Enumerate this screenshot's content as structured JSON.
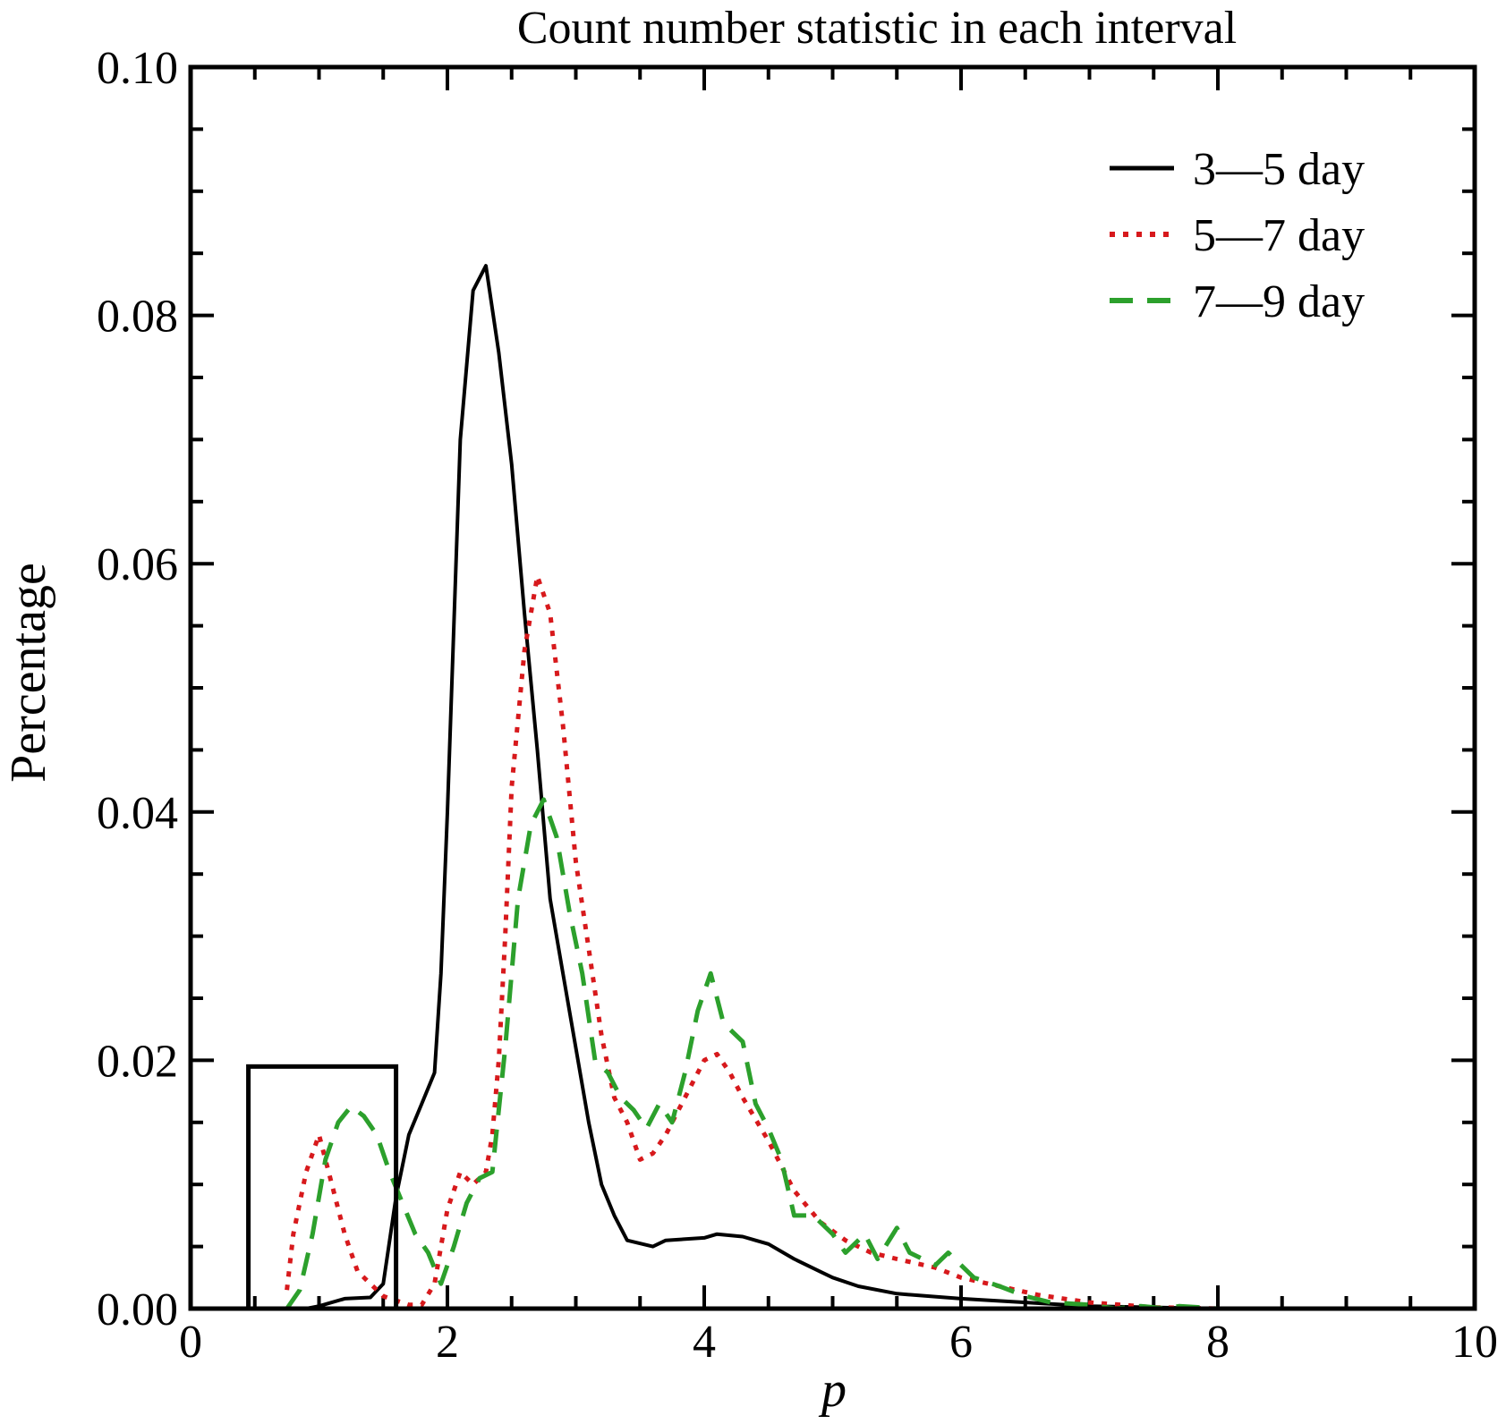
{
  "chart_data": {
    "type": "line",
    "title": "Count number statistic in each interval",
    "xlabel": "p",
    "ylabel": "Percentage",
    "xlim": [
      0,
      10
    ],
    "ylim": [
      0,
      0.1
    ],
    "grid": false,
    "legend_position": "top-right",
    "x_ticks": [
      0,
      2,
      4,
      6,
      8,
      10
    ],
    "x_tick_labels": [
      "0",
      "2",
      "4",
      "6",
      "8",
      "10"
    ],
    "y_ticks": [
      0,
      0.02,
      0.04,
      0.06,
      0.08,
      0.1
    ],
    "y_tick_labels": [
      "0.00",
      "0.02",
      "0.04",
      "0.06",
      "0.08",
      "0.10"
    ],
    "highlight_box": {
      "x_range": [
        0.45,
        1.6
      ],
      "y_range": [
        0,
        0.0195
      ]
    },
    "series": [
      {
        "name": "3—5 day",
        "color": "#000000",
        "style": "solid",
        "points": [
          [
            0.5,
            0
          ],
          [
            0.9,
            0
          ],
          [
            1.0,
            0.0002
          ],
          [
            1.2,
            0.0008
          ],
          [
            1.4,
            0.0009
          ],
          [
            1.5,
            0.002
          ],
          [
            1.6,
            0.009
          ],
          [
            1.7,
            0.014
          ],
          [
            1.8,
            0.0165
          ],
          [
            1.9,
            0.019
          ],
          [
            1.95,
            0.027
          ],
          [
            2.0,
            0.04
          ],
          [
            2.05,
            0.055
          ],
          [
            2.1,
            0.07
          ],
          [
            2.2,
            0.082
          ],
          [
            2.3,
            0.084
          ],
          [
            2.4,
            0.077
          ],
          [
            2.5,
            0.068
          ],
          [
            2.6,
            0.056
          ],
          [
            2.7,
            0.045
          ],
          [
            2.8,
            0.033
          ],
          [
            2.9,
            0.027
          ],
          [
            3.0,
            0.021
          ],
          [
            3.1,
            0.015
          ],
          [
            3.2,
            0.01
          ],
          [
            3.3,
            0.0075
          ],
          [
            3.4,
            0.0055
          ],
          [
            3.6,
            0.005
          ],
          [
            3.7,
            0.0055
          ],
          [
            4.0,
            0.0057
          ],
          [
            4.1,
            0.006
          ],
          [
            4.3,
            0.0058
          ],
          [
            4.4,
            0.0055
          ],
          [
            4.5,
            0.0052
          ],
          [
            4.7,
            0.004
          ],
          [
            4.9,
            0.003
          ],
          [
            5.0,
            0.0025
          ],
          [
            5.2,
            0.0018
          ],
          [
            5.5,
            0.0012
          ],
          [
            6.0,
            0.0008
          ],
          [
            6.5,
            0.0005
          ],
          [
            7.0,
            0.0002
          ],
          [
            7.5,
            0.0001
          ],
          [
            8.0,
            0
          ]
        ]
      },
      {
        "name": "5—7 day",
        "color": "#d7191c",
        "style": "dotted",
        "points": [
          [
            0.75,
            0.0015
          ],
          [
            0.8,
            0.006
          ],
          [
            0.9,
            0.011
          ],
          [
            1.0,
            0.014
          ],
          [
            1.1,
            0.01
          ],
          [
            1.2,
            0.006
          ],
          [
            1.3,
            0.003
          ],
          [
            1.5,
            0.001
          ],
          [
            1.7,
            0.0003
          ],
          [
            1.8,
            0.0003
          ],
          [
            1.9,
            0.002
          ],
          [
            2.0,
            0.008
          ],
          [
            2.1,
            0.011
          ],
          [
            2.2,
            0.01
          ],
          [
            2.3,
            0.011
          ],
          [
            2.35,
            0.014
          ],
          [
            2.4,
            0.02
          ],
          [
            2.45,
            0.03
          ],
          [
            2.5,
            0.042
          ],
          [
            2.6,
            0.053
          ],
          [
            2.7,
            0.059
          ],
          [
            2.8,
            0.056
          ],
          [
            2.9,
            0.047
          ],
          [
            3.0,
            0.036
          ],
          [
            3.1,
            0.029
          ],
          [
            3.2,
            0.022
          ],
          [
            3.3,
            0.017
          ],
          [
            3.4,
            0.015
          ],
          [
            3.5,
            0.012
          ],
          [
            3.6,
            0.0125
          ],
          [
            3.7,
            0.014
          ],
          [
            3.8,
            0.016
          ],
          [
            3.9,
            0.018
          ],
          [
            4.0,
            0.02
          ],
          [
            4.1,
            0.0205
          ],
          [
            4.2,
            0.019
          ],
          [
            4.3,
            0.017
          ],
          [
            4.5,
            0.0135
          ],
          [
            4.7,
            0.0095
          ],
          [
            4.9,
            0.007
          ],
          [
            5.1,
            0.0055
          ],
          [
            5.3,
            0.0045
          ],
          [
            5.5,
            0.004
          ],
          [
            5.8,
            0.0033
          ],
          [
            6.0,
            0.0025
          ],
          [
            6.3,
            0.0018
          ],
          [
            6.6,
            0.0011
          ],
          [
            7.0,
            0.0005
          ],
          [
            7.5,
            0.0001
          ],
          [
            8.0,
            0
          ],
          [
            8.4,
            0
          ]
        ]
      },
      {
        "name": "7—9 day",
        "color": "#2ca02c",
        "style": "dashed",
        "points": [
          [
            0.75,
            0
          ],
          [
            0.85,
            0.0015
          ],
          [
            0.95,
            0.006
          ],
          [
            1.05,
            0.012
          ],
          [
            1.15,
            0.015
          ],
          [
            1.25,
            0.0163
          ],
          [
            1.35,
            0.0155
          ],
          [
            1.45,
            0.014
          ],
          [
            1.55,
            0.011
          ],
          [
            1.65,
            0.0085
          ],
          [
            1.75,
            0.006
          ],
          [
            1.85,
            0.0045
          ],
          [
            1.95,
            0.002
          ],
          [
            2.05,
            0.005
          ],
          [
            2.15,
            0.0085
          ],
          [
            2.25,
            0.0105
          ],
          [
            2.35,
            0.011
          ],
          [
            2.45,
            0.021
          ],
          [
            2.55,
            0.033
          ],
          [
            2.65,
            0.039
          ],
          [
            2.75,
            0.041
          ],
          [
            2.85,
            0.038
          ],
          [
            2.95,
            0.032
          ],
          [
            3.05,
            0.027
          ],
          [
            3.15,
            0.02
          ],
          [
            3.25,
            0.019
          ],
          [
            3.35,
            0.017
          ],
          [
            3.45,
            0.016
          ],
          [
            3.55,
            0.0145
          ],
          [
            3.65,
            0.0165
          ],
          [
            3.75,
            0.015
          ],
          [
            3.85,
            0.019
          ],
          [
            3.95,
            0.024
          ],
          [
            4.05,
            0.027
          ],
          [
            4.15,
            0.023
          ],
          [
            4.3,
            0.0215
          ],
          [
            4.4,
            0.0165
          ],
          [
            4.5,
            0.0145
          ],
          [
            4.6,
            0.012
          ],
          [
            4.7,
            0.0075
          ],
          [
            4.85,
            0.0075
          ],
          [
            5.0,
            0.006
          ],
          [
            5.1,
            0.0045
          ],
          [
            5.25,
            0.006
          ],
          [
            5.35,
            0.004
          ],
          [
            5.5,
            0.0065
          ],
          [
            5.6,
            0.0045
          ],
          [
            5.8,
            0.0035
          ],
          [
            5.9,
            0.0045
          ],
          [
            6.1,
            0.0025
          ],
          [
            6.3,
            0.0018
          ],
          [
            6.5,
            0.001
          ],
          [
            6.7,
            0.0005
          ],
          [
            7.0,
            0.0003
          ],
          [
            7.2,
            0
          ],
          [
            7.4,
            0.0002
          ],
          [
            7.6,
            0
          ],
          [
            7.7,
            0.0002
          ],
          [
            8.0,
            0
          ],
          [
            8.4,
            0
          ]
        ]
      }
    ]
  }
}
